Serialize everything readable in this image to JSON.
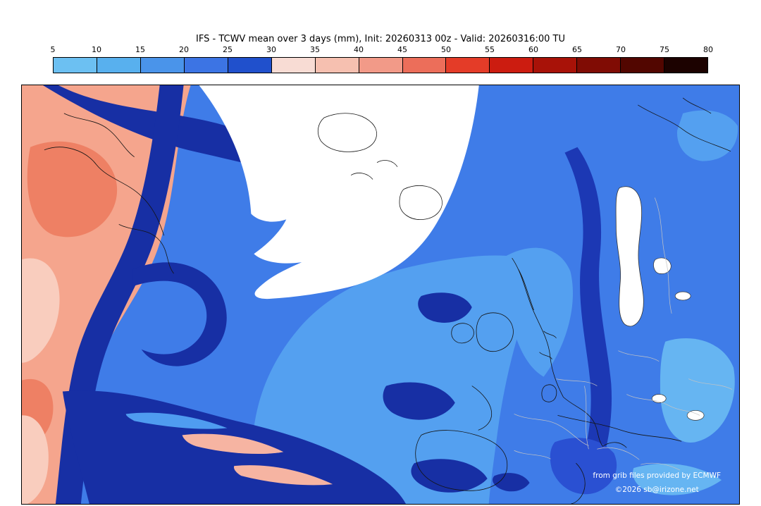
{
  "title": "IFS - TCWV mean over 3 days (mm), Init: 20260313 00z - Valid: 20260316:00 TU",
  "colorbar": {
    "unit": "mm",
    "ticks": [
      "5",
      "10",
      "15",
      "20",
      "25",
      "30",
      "35",
      "40",
      "45",
      "50",
      "55",
      "60",
      "65",
      "70",
      "75",
      "80"
    ],
    "colors": [
      "#6cc0f2",
      "#58b0ee",
      "#4a94ea",
      "#3c74e4",
      "#2050cc",
      "#f8dcd4",
      "#f6c0b0",
      "#f29a88",
      "#ec6e5a",
      "#e43c28",
      "#cc1c10",
      "#a81208",
      "#800c04",
      "#520600",
      "#1c0200"
    ]
  },
  "credits": {
    "line1": "from grib files provided by ECMWF",
    "line2": "©2026 sb@irizone.net"
  },
  "map_colors": {
    "sea_20_25": "#3f7ce8",
    "sea_15_20": "#54a0f0",
    "sea_10_15": "#66b5f2",
    "navy_25_30": "#172fa4",
    "pink_35_40": "#f5a58d",
    "pink_30_35": "#f9cdbe",
    "salmon_40_45": "#ee8064",
    "dry_below_5": "#ffffff"
  }
}
